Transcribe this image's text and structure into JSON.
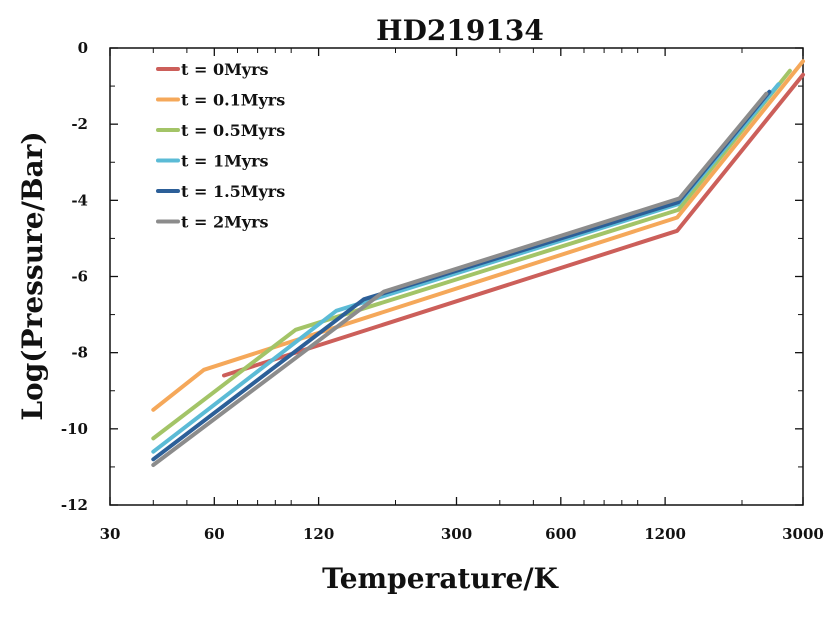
{
  "chart_data": {
    "type": "line",
    "title": "HD219134",
    "xlabel": "Temperature/K",
    "ylabel": "Log(Pressure/Bar)",
    "xscale": "log",
    "xlim": [
      30,
      3000
    ],
    "ylim": [
      -12,
      0
    ],
    "xticks": [
      30,
      60,
      120,
      300,
      600,
      1200,
      3000
    ],
    "xtick_labels": [
      "30",
      "60",
      "120",
      "300",
      "600",
      "1200",
      "3000"
    ],
    "yticks": [
      0,
      -2,
      -4,
      -6,
      -8,
      -10,
      -12
    ],
    "ytick_labels": [
      "0",
      "-2",
      "-4",
      "-6",
      "-8",
      "-10",
      "-12"
    ],
    "grid": false,
    "legend_position": "top-left",
    "series": [
      {
        "name": "t = 0Myrs",
        "color": "#cc5f5a",
        "x": [
          64,
          1300,
          3000
        ],
        "y": [
          -8.6,
          -4.8,
          -0.7
        ]
      },
      {
        "name": "t = 0.1Myrs",
        "color": "#f5a85a",
        "x": [
          40,
          56,
          1300,
          3000
        ],
        "y": [
          -9.5,
          -8.45,
          -4.45,
          -0.35
        ]
      },
      {
        "name": "t = 0.5Myrs",
        "color": "#a3c467",
        "x": [
          40,
          103,
          1310,
          2750
        ],
        "y": [
          -10.25,
          -7.4,
          -4.25,
          -0.6
        ]
      },
      {
        "name": "t = 1Myrs",
        "color": "#5bbbd6",
        "x": [
          40,
          135,
          1310,
          2550
        ],
        "y": [
          -10.6,
          -6.9,
          -4.1,
          -0.95
        ]
      },
      {
        "name": "t = 1.5Myrs",
        "color": "#2c5f98",
        "x": [
          40,
          162,
          1310,
          2400
        ],
        "y": [
          -10.8,
          -6.6,
          -4.05,
          -1.15
        ]
      },
      {
        "name": "t = 2Myrs",
        "color": "#8c8c8c",
        "x": [
          40,
          185,
          1320,
          2350
        ],
        "y": [
          -10.95,
          -6.4,
          -3.95,
          -1.2
        ]
      }
    ]
  }
}
